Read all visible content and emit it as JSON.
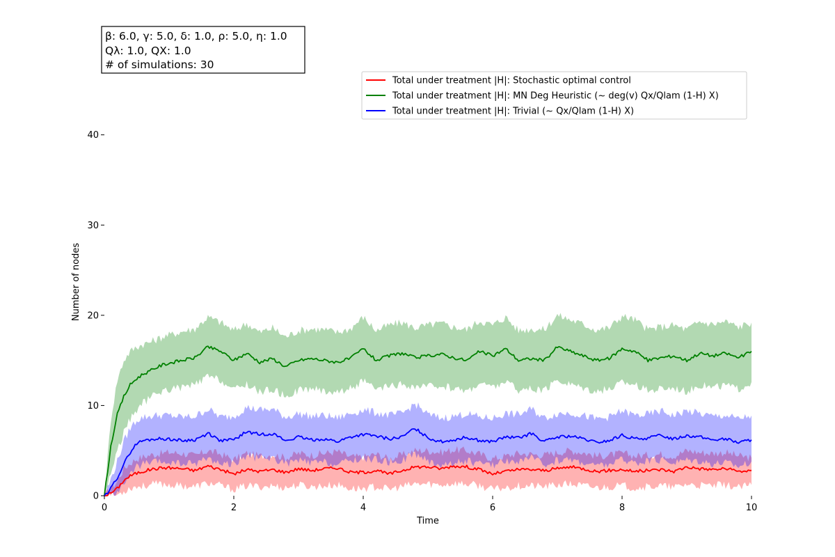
{
  "chart_data": {
    "type": "line",
    "title": "",
    "xlabel": "Time",
    "ylabel": "Number of nodes",
    "xlim": [
      0,
      10
    ],
    "ylim": [
      0,
      48
    ],
    "x_ticks": [
      0,
      2,
      4,
      6,
      8,
      10
    ],
    "y_ticks": [
      0,
      10,
      20,
      30,
      40
    ],
    "grid": false,
    "legend_position": "upper-right",
    "info_box": {
      "line1": "β: 6.0, γ: 5.0, δ: 1.0, ρ: 5.0, η: 1.0",
      "line2": "Qλ: 1.0, QX: 1.0",
      "line3": "# of simulations: 30"
    },
    "series": [
      {
        "name": "Total under treatment |H|: Stochastic optimal control",
        "color": "#ff0000",
        "band_color": "#ff0000",
        "x": [
          0,
          0.1,
          0.2,
          0.3,
          0.4,
          0.5,
          0.6,
          0.7,
          0.8,
          0.9,
          1.0,
          1.2,
          1.4,
          1.6,
          1.8,
          2.0,
          2.2,
          2.4,
          2.6,
          2.8,
          3.0,
          3.2,
          3.4,
          3.6,
          3.8,
          4.0,
          4.2,
          4.4,
          4.6,
          4.8,
          5.0,
          5.2,
          5.4,
          5.6,
          5.8,
          6.0,
          6.2,
          6.4,
          6.6,
          6.8,
          7.0,
          7.2,
          7.4,
          7.6,
          7.8,
          8.0,
          8.2,
          8.4,
          8.6,
          8.8,
          9.0,
          9.2,
          9.4,
          9.6,
          9.8,
          10.0
        ],
        "mean": [
          0,
          0.3,
          0.8,
          1.7,
          2.2,
          2.5,
          2.7,
          2.9,
          3.0,
          3.1,
          3.1,
          3.0,
          2.8,
          3.3,
          2.9,
          2.4,
          2.9,
          2.7,
          2.9,
          2.6,
          3.0,
          2.8,
          3.0,
          3.1,
          2.6,
          2.6,
          2.8,
          2.4,
          2.8,
          3.2,
          3.2,
          3.0,
          3.3,
          3.2,
          2.9,
          2.4,
          2.7,
          2.9,
          2.9,
          2.8,
          3.0,
          3.2,
          3.0,
          2.7,
          2.8,
          2.9,
          2.7,
          2.8,
          2.9,
          2.7,
          3.2,
          3.0,
          2.9,
          3.0,
          2.7,
          2.8
        ],
        "lower": [
          0,
          0.0,
          0.1,
          0.5,
          0.9,
          1.0,
          1.1,
          1.2,
          1.3,
          1.3,
          1.2,
          1.1,
          1.0,
          1.4,
          1.1,
          0.7,
          1.1,
          1.0,
          1.1,
          0.9,
          1.2,
          1.0,
          1.1,
          1.2,
          0.8,
          0.8,
          1.0,
          0.7,
          1.0,
          1.3,
          1.3,
          1.2,
          1.4,
          1.3,
          1.1,
          0.7,
          0.9,
          1.1,
          1.1,
          1.0,
          1.2,
          1.3,
          1.1,
          0.9,
          1.0,
          1.1,
          0.9,
          1.0,
          1.1,
          0.9,
          1.3,
          1.1,
          1.1,
          1.2,
          0.9,
          1.2
        ],
        "upper": [
          0,
          0.8,
          1.6,
          3.0,
          3.6,
          4.1,
          4.3,
          4.5,
          4.6,
          4.7,
          4.8,
          4.7,
          4.4,
          5.0,
          4.6,
          4.0,
          4.7,
          4.4,
          4.6,
          4.2,
          4.7,
          4.5,
          4.7,
          4.9,
          4.3,
          4.3,
          4.6,
          4.1,
          4.5,
          5.0,
          5.0,
          4.8,
          5.1,
          5.0,
          4.6,
          4.1,
          4.4,
          4.7,
          4.6,
          4.5,
          4.8,
          5.0,
          4.8,
          4.4,
          4.5,
          4.7,
          4.4,
          4.5,
          4.6,
          4.4,
          5.0,
          4.8,
          4.7,
          4.8,
          4.4,
          4.2
        ]
      },
      {
        "name": "Total under treatment |H|: MN Deg Heuristic (~ deg(v) Qx/Qlam (1-H) X)",
        "color": "#008000",
        "band_color": "#008000",
        "x": [
          0,
          0.1,
          0.2,
          0.3,
          0.4,
          0.5,
          0.6,
          0.7,
          0.8,
          0.9,
          1.0,
          1.2,
          1.4,
          1.6,
          1.8,
          2.0,
          2.2,
          2.4,
          2.6,
          2.8,
          3.0,
          3.2,
          3.4,
          3.6,
          3.8,
          4.0,
          4.2,
          4.4,
          4.6,
          4.8,
          5.0,
          5.2,
          5.4,
          5.6,
          5.8,
          6.0,
          6.2,
          6.4,
          6.6,
          6.8,
          7.0,
          7.2,
          7.4,
          7.6,
          7.8,
          8.0,
          8.2,
          8.4,
          8.6,
          8.8,
          9.0,
          9.2,
          9.4,
          9.6,
          9.8,
          10.0
        ],
        "mean": [
          0,
          5.5,
          9.0,
          11.0,
          12.3,
          13.0,
          13.5,
          13.8,
          14.2,
          14.5,
          14.7,
          15.0,
          15.3,
          16.5,
          16.0,
          15.0,
          15.8,
          14.8,
          15.2,
          14.3,
          15.0,
          15.2,
          15.0,
          14.8,
          15.2,
          16.3,
          15.0,
          15.5,
          15.8,
          15.3,
          15.5,
          15.7,
          15.3,
          15.0,
          16.0,
          15.5,
          16.3,
          15.0,
          15.2,
          15.0,
          16.5,
          16.0,
          15.5,
          15.0,
          15.2,
          16.3,
          16.0,
          15.0,
          15.3,
          15.5,
          15.0,
          15.8,
          15.5,
          15.8,
          15.3,
          16.0
        ],
        "lower": [
          0,
          2.5,
          5.0,
          7.0,
          8.5,
          9.5,
          10.3,
          10.8,
          11.3,
          11.6,
          11.8,
          12.0,
          12.3,
          13.2,
          12.8,
          11.7,
          12.4,
          11.5,
          11.8,
          11.0,
          11.7,
          11.9,
          11.6,
          11.5,
          11.9,
          12.7,
          11.7,
          12.1,
          12.3,
          12.0,
          12.1,
          12.2,
          11.9,
          11.6,
          12.5,
          12.0,
          12.7,
          11.7,
          11.8,
          11.6,
          12.8,
          12.4,
          12.0,
          11.6,
          11.8,
          12.6,
          12.4,
          11.6,
          11.9,
          12.0,
          11.6,
          12.3,
          12.0,
          12.3,
          11.8,
          12.6
        ],
        "upper": [
          0,
          8.5,
          12.8,
          15.0,
          16.0,
          16.5,
          16.8,
          17.0,
          17.3,
          17.6,
          17.8,
          18.2,
          18.5,
          19.8,
          19.2,
          18.3,
          19.1,
          18.1,
          18.6,
          17.6,
          18.3,
          18.5,
          18.4,
          18.1,
          18.5,
          19.8,
          18.3,
          18.9,
          19.2,
          18.6,
          18.9,
          19.1,
          18.7,
          18.4,
          19.4,
          18.9,
          19.8,
          18.3,
          18.5,
          18.4,
          20.0,
          19.5,
          19.0,
          18.4,
          18.6,
          19.9,
          19.5,
          18.4,
          18.7,
          18.9,
          18.4,
          19.3,
          19.0,
          19.3,
          18.7,
          19.2
        ]
      },
      {
        "name": "Total under treatment |H|: Trivial (~ Qx/Qlam (1-H) X)",
        "color": "#0000ff",
        "band_color": "#0000ff",
        "x": [
          0,
          0.1,
          0.2,
          0.3,
          0.4,
          0.5,
          0.6,
          0.7,
          0.8,
          0.9,
          1.0,
          1.2,
          1.4,
          1.6,
          1.8,
          2.0,
          2.2,
          2.4,
          2.6,
          2.8,
          3.0,
          3.2,
          3.4,
          3.6,
          3.8,
          4.0,
          4.2,
          4.4,
          4.6,
          4.8,
          5.0,
          5.2,
          5.4,
          5.6,
          5.8,
          6.0,
          6.2,
          6.4,
          6.6,
          6.8,
          7.0,
          7.2,
          7.4,
          7.6,
          7.8,
          8.0,
          8.2,
          8.4,
          8.6,
          8.8,
          9.0,
          9.2,
          9.4,
          9.6,
          9.8,
          10.0
        ],
        "mean": [
          0,
          0.8,
          2.0,
          3.5,
          4.8,
          5.8,
          6.1,
          6.2,
          6.3,
          6.3,
          6.3,
          6.1,
          6.2,
          6.9,
          6.1,
          6.2,
          7.1,
          6.8,
          6.9,
          6.1,
          6.5,
          6.2,
          6.3,
          6.0,
          6.5,
          6.8,
          6.6,
          6.3,
          6.5,
          7.5,
          6.4,
          6.0,
          6.2,
          6.5,
          6.1,
          6.0,
          6.5,
          6.4,
          6.9,
          6.0,
          6.5,
          6.6,
          6.3,
          5.9,
          6.1,
          6.7,
          6.3,
          6.4,
          6.7,
          6.3,
          6.7,
          6.5,
          6.2,
          6.3,
          5.9,
          6.2
        ],
        "lower": [
          0,
          0.1,
          0.5,
          1.3,
          2.3,
          3.2,
          3.5,
          3.6,
          3.7,
          3.7,
          3.7,
          3.5,
          3.6,
          4.2,
          3.5,
          3.6,
          4.4,
          4.1,
          4.2,
          3.5,
          3.9,
          3.6,
          3.7,
          3.4,
          3.9,
          4.1,
          4.0,
          3.7,
          3.9,
          4.7,
          3.8,
          3.4,
          3.6,
          3.9,
          3.5,
          3.4,
          3.9,
          3.8,
          4.2,
          3.4,
          3.9,
          4.0,
          3.7,
          3.3,
          3.5,
          4.0,
          3.7,
          3.8,
          4.0,
          3.7,
          4.0,
          3.9,
          3.6,
          3.7,
          3.3,
          3.8
        ],
        "upper": [
          0,
          1.8,
          3.8,
          6.0,
          7.5,
          8.4,
          8.7,
          8.8,
          8.9,
          8.9,
          8.9,
          8.7,
          8.8,
          9.6,
          8.7,
          8.8,
          9.8,
          9.5,
          9.6,
          8.7,
          9.1,
          8.8,
          8.9,
          8.6,
          9.1,
          9.5,
          9.2,
          8.9,
          9.1,
          10.2,
          9.0,
          8.6,
          8.8,
          9.1,
          8.7,
          8.6,
          9.1,
          9.0,
          9.6,
          8.6,
          9.1,
          9.2,
          8.9,
          8.5,
          8.7,
          9.4,
          8.9,
          9.0,
          9.4,
          8.9,
          9.4,
          9.1,
          8.8,
          8.9,
          8.5,
          8.9
        ]
      }
    ]
  }
}
